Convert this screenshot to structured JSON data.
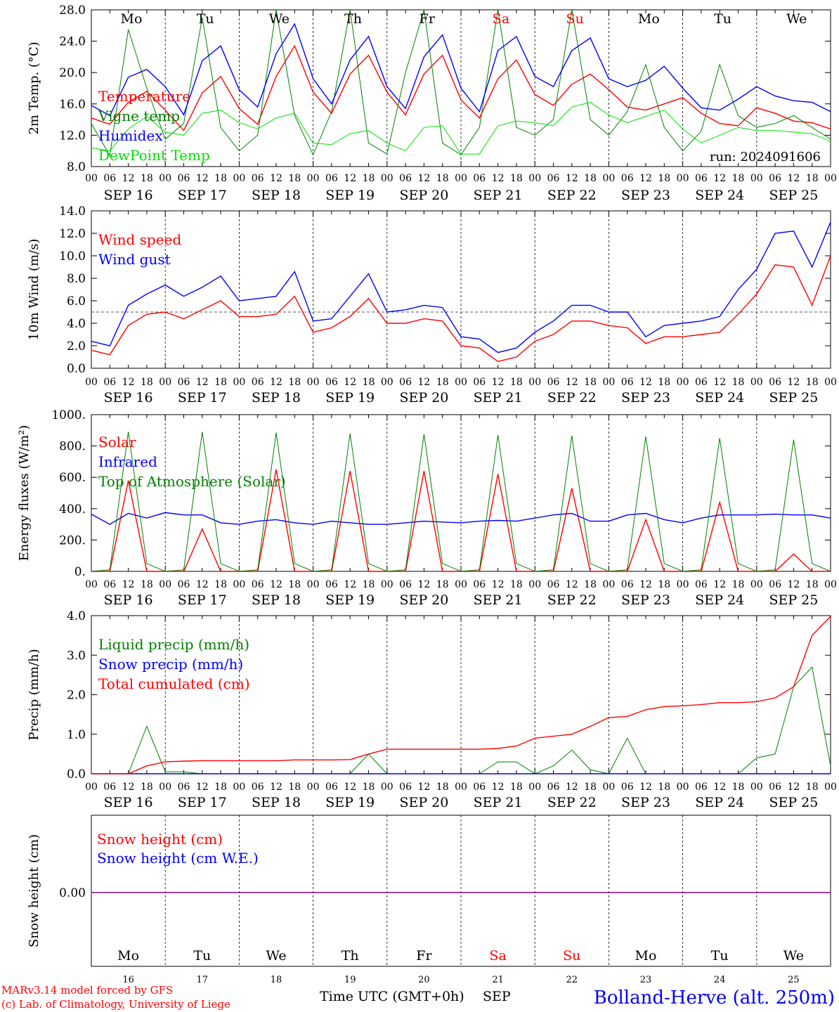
{
  "days": [
    "Mo",
    "Tu",
    "We",
    "Th",
    "Fr",
    "Sa",
    "Su",
    "Mo",
    "Tu",
    "We"
  ],
  "weekend_flags": [
    false,
    false,
    false,
    false,
    false,
    true,
    true,
    false,
    false,
    false
  ],
  "date_labels": [
    "SEP 16",
    "SEP 17",
    "SEP 18",
    "SEP 19",
    "SEP 20",
    "SEP 21",
    "SEP 22",
    "SEP 23",
    "SEP 24",
    "SEP 25"
  ],
  "hour_labels": [
    "00",
    "06",
    "12",
    "18"
  ],
  "bottom_day_numbers": [
    "16",
    "17",
    "18",
    "19",
    "20",
    "21",
    "22",
    "23",
    "24",
    "25"
  ],
  "run_label": "run: 2024091606",
  "footer": {
    "model": "MARv3.14 model forced by GFS",
    "copyright": "(c) Lab. of Climatology, University of Liege",
    "xlabel": "Time UTC (GMT+0h)",
    "month": "SEP",
    "station": "Bolland-Herve (alt. 250m)"
  },
  "colors": {
    "red": "#ff0000",
    "blue": "#0000ff",
    "green": "#008000",
    "lightgreen": "#00e000",
    "purple": "#800080"
  },
  "chart_data": [
    {
      "type": "line",
      "ylabel": "2m Temp. (°C)",
      "ylim": [
        8,
        28
      ],
      "yticks": [
        "8.0",
        "12.0",
        "16.0",
        "20.0",
        "24.0",
        "28.0"
      ],
      "x_hours": [
        0,
        6,
        12,
        18,
        24,
        30,
        36,
        42,
        48,
        54,
        60,
        66,
        72,
        78,
        84,
        90,
        96,
        102,
        108,
        114,
        120,
        126,
        132,
        138,
        144,
        150,
        156,
        162,
        168,
        174,
        180,
        186,
        192,
        198,
        204,
        210,
        216,
        222,
        228,
        234,
        240
      ],
      "series": [
        {
          "name": "Temperature",
          "color": "red",
          "values": [
            14.2,
            13.4,
            16.2,
            17.6,
            15.2,
            12.6,
            17.4,
            19.5,
            15.4,
            13.4,
            19.5,
            23.4,
            17.5,
            14.8,
            19.8,
            22.2,
            17.5,
            14.6,
            19.8,
            22.2,
            16.5,
            14.2,
            19.2,
            21.6,
            17.2,
            15.8,
            18.5,
            19.8,
            17.8,
            15.6,
            15.2,
            16.0,
            16.8,
            14.8,
            13.5,
            13.2,
            15.5,
            14.8,
            13.8,
            13.6,
            12.8
          ]
        },
        {
          "name": "Vigne temp",
          "color": "green",
          "values": [
            13.5,
            9.4,
            25.5,
            18.0,
            11.5,
            13.5,
            27.0,
            13.0,
            10.0,
            12.0,
            28.0,
            14.5,
            9.5,
            15.0,
            28.0,
            11.0,
            9.6,
            20.0,
            28.0,
            11.0,
            9.5,
            13.0,
            28.0,
            13.0,
            12.0,
            14.0,
            28.0,
            14.0,
            12.0,
            15.0,
            21.0,
            13.0,
            10.0,
            12.5,
            21.0,
            14.5,
            13.0,
            13.5,
            14.5,
            13.0,
            11.5
          ]
        },
        {
          "name": "Humidex",
          "color": "blue",
          "values": [
            15.8,
            14.5,
            19.4,
            20.4,
            18.2,
            14.6,
            21.5,
            23.4,
            17.8,
            15.6,
            22.4,
            26.2,
            19.2,
            16.0,
            21.6,
            24.6,
            18.2,
            15.4,
            22.0,
            24.8,
            18.0,
            15.0,
            22.8,
            24.6,
            19.5,
            18.2,
            22.8,
            24.4,
            19.2,
            18.2,
            19.0,
            20.8,
            18.0,
            15.5,
            15.2,
            16.6,
            18.2,
            17.0,
            16.4,
            16.2,
            15.0
          ]
        },
        {
          "name": "DewPoint Temp",
          "color": "lightgreen",
          "values": [
            10.4,
            10.0,
            12.8,
            14.4,
            12.4,
            12.0,
            14.8,
            15.2,
            13.6,
            12.8,
            14.2,
            14.8,
            11.0,
            10.8,
            12.2,
            12.6,
            11.0,
            10.0,
            13.0,
            13.2,
            9.6,
            9.6,
            13.2,
            13.8,
            13.6,
            13.2,
            15.6,
            16.2,
            14.6,
            13.6,
            14.4,
            15.2,
            12.8,
            11.0,
            12.0,
            13.0,
            12.6,
            12.6,
            12.4,
            12.2,
            11.2
          ]
        }
      ]
    },
    {
      "type": "line",
      "ylabel": "10m Wind (m/s)",
      "ylim": [
        0,
        14
      ],
      "yticks": [
        "0.0",
        "2.0",
        "4.0",
        "6.0",
        "8.0",
        "10.0",
        "12.0",
        "14.0"
      ],
      "x_hours": [
        0,
        6,
        12,
        18,
        24,
        30,
        36,
        42,
        48,
        54,
        60,
        66,
        72,
        78,
        84,
        90,
        96,
        102,
        108,
        114,
        120,
        126,
        132,
        138,
        144,
        150,
        156,
        162,
        168,
        174,
        180,
        186,
        192,
        198,
        204,
        210,
        216,
        222,
        228,
        234,
        240
      ],
      "reference_line": 5.0,
      "series": [
        {
          "name": "Wind speed",
          "color": "red",
          "values": [
            1.6,
            1.2,
            3.8,
            4.8,
            5.0,
            4.4,
            5.2,
            6.0,
            4.6,
            4.6,
            4.8,
            6.4,
            3.2,
            3.6,
            4.6,
            6.2,
            4.0,
            4.0,
            4.4,
            4.2,
            2.0,
            1.8,
            0.6,
            1.0,
            2.4,
            3.0,
            4.2,
            4.2,
            3.8,
            3.6,
            2.2,
            2.8,
            2.8,
            3.0,
            3.2,
            4.8,
            6.6,
            9.2,
            9.0,
            5.6,
            10.0
          ]
        },
        {
          "name": "Wind gust",
          "color": "blue",
          "values": [
            2.4,
            2.0,
            5.6,
            6.6,
            7.4,
            6.4,
            7.2,
            8.2,
            6.0,
            6.2,
            6.4,
            8.6,
            4.2,
            4.4,
            6.4,
            8.4,
            5.0,
            5.2,
            5.6,
            5.4,
            2.8,
            2.6,
            1.4,
            1.8,
            3.2,
            4.2,
            5.6,
            5.6,
            5.0,
            5.0,
            2.8,
            3.8,
            4.0,
            4.2,
            4.6,
            7.0,
            8.8,
            12.0,
            12.2,
            9.0,
            13.0
          ]
        }
      ]
    },
    {
      "type": "line",
      "ylabel": "Energy fluxes (W/m²)",
      "ylim": [
        0,
        1000
      ],
      "yticks": [
        "0.",
        "200.",
        "400.",
        "600.",
        "800.",
        "1000."
      ],
      "x_hours": [
        0,
        6,
        12,
        18,
        24,
        30,
        36,
        42,
        48,
        54,
        60,
        66,
        72,
        78,
        84,
        90,
        96,
        102,
        108,
        114,
        120,
        126,
        132,
        138,
        144,
        150,
        156,
        162,
        168,
        174,
        180,
        186,
        192,
        198,
        204,
        210,
        216,
        222,
        228,
        234,
        240
      ],
      "series": [
        {
          "name": "Solar",
          "color": "red",
          "values": [
            0,
            0,
            580,
            0,
            0,
            0,
            270,
            0,
            0,
            0,
            650,
            0,
            0,
            0,
            640,
            0,
            0,
            0,
            640,
            0,
            0,
            0,
            620,
            0,
            0,
            0,
            530,
            0,
            0,
            0,
            330,
            0,
            0,
            0,
            440,
            0,
            0,
            0,
            110,
            0,
            0
          ]
        },
        {
          "name": "Infrared",
          "color": "blue",
          "values": [
            365,
            300,
            370,
            340,
            375,
            360,
            360,
            310,
            300,
            320,
            330,
            310,
            300,
            320,
            310,
            300,
            300,
            310,
            320,
            315,
            310,
            320,
            325,
            320,
            340,
            360,
            370,
            320,
            320,
            360,
            370,
            330,
            310,
            340,
            360,
            360,
            360,
            365,
            360,
            360,
            340
          ]
        },
        {
          "name": "Top of Atmosphere (Solar)",
          "color": "green",
          "values": [
            0,
            10,
            890,
            50,
            0,
            10,
            890,
            50,
            0,
            10,
            885,
            50,
            0,
            10,
            880,
            50,
            0,
            10,
            875,
            50,
            0,
            10,
            870,
            50,
            0,
            10,
            865,
            50,
            0,
            10,
            860,
            50,
            0,
            10,
            850,
            50,
            0,
            10,
            840,
            50,
            0
          ]
        }
      ]
    },
    {
      "type": "line",
      "ylabel": "Precip (mm/h)",
      "ylim": [
        0,
        4
      ],
      "yticks": [
        "0.0",
        "1.0",
        "2.0",
        "3.0",
        "4.0"
      ],
      "x_hours": [
        0,
        6,
        12,
        18,
        24,
        30,
        36,
        42,
        48,
        54,
        60,
        66,
        72,
        78,
        84,
        90,
        96,
        102,
        108,
        114,
        120,
        126,
        132,
        138,
        144,
        150,
        156,
        162,
        168,
        174,
        180,
        186,
        192,
        198,
        204,
        210,
        216,
        222,
        228,
        234,
        240
      ],
      "series": [
        {
          "name": "Liquid precip (mm/h)",
          "color": "green",
          "values": [
            0,
            0,
            0,
            1.2,
            0.05,
            0.05,
            0,
            0,
            0,
            0,
            0,
            0,
            0,
            0,
            0,
            0.5,
            0,
            0,
            0,
            0,
            0,
            0,
            0.3,
            0.3,
            0,
            0.2,
            0.6,
            0.1,
            0,
            0.9,
            0,
            0,
            0,
            0,
            0,
            0,
            0.4,
            0.5,
            2.2,
            2.7,
            0.2
          ]
        },
        {
          "name": "Snow precip (mm/h)",
          "color": "blue",
          "values": [
            0,
            0,
            0,
            0,
            0,
            0,
            0,
            0,
            0,
            0,
            0,
            0,
            0,
            0,
            0,
            0,
            0,
            0,
            0,
            0,
            0,
            0,
            0,
            0,
            0,
            0,
            0,
            0,
            0,
            0,
            0,
            0,
            0,
            0,
            0,
            0,
            0,
            0,
            0,
            0,
            0
          ]
        },
        {
          "name": "Total cumulated (cm)",
          "color": "red",
          "values": [
            0,
            0,
            0,
            0.2,
            0.3,
            0.32,
            0.33,
            0.33,
            0.33,
            0.33,
            0.33,
            0.35,
            0.35,
            0.35,
            0.36,
            0.5,
            0.62,
            0.62,
            0.62,
            0.62,
            0.62,
            0.62,
            0.64,
            0.7,
            0.9,
            0.95,
            1.0,
            1.2,
            1.42,
            1.45,
            1.62,
            1.7,
            1.72,
            1.75,
            1.8,
            1.8,
            1.82,
            1.92,
            2.2,
            3.5,
            3.98
          ]
        }
      ]
    },
    {
      "type": "line",
      "ylabel": "Snow height (cm)",
      "yticks": [
        "0.00"
      ],
      "series": [
        {
          "name": "Snow height (cm)",
          "color": "red",
          "values": [
            0,
            0
          ]
        },
        {
          "name": "Snow height (cm W.E.)",
          "color": "blue",
          "values": [
            0,
            0
          ]
        }
      ]
    }
  ]
}
